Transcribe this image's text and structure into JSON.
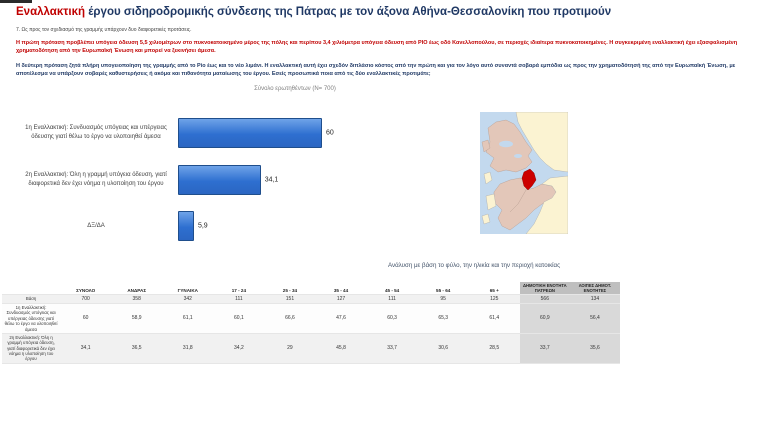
{
  "page": {
    "title_highlight": "Εναλλακτική",
    "title_rest": " έργου σιδηροδρομικής σύνδεσης της Πάτρας με τον άξονα Αθήνα-Θεσσαλονίκη που προτιμούν",
    "subtitle": "7. Ως προς τον σχεδιασμό της γραμμής υπάρχουν δυο διαφορετικές προτάσεις.",
    "paragraph_red": "Η πρώτη πρόταση προβλέπει υπόγεια όδευση 5,5 χιλιομέτρων στο πυκνοκατοικημένο μέρος της πόλης και περίπου 3,4 χιλιόμετρα υπόγεια όδευση από ΡΙΟ έως οδό Κανελλοπούλου, σε περιοχές ιδιαίτερα πυκνοκατοικημένες. Η συγκεκριμένη εναλλακτική έχει εξασφαλισμένη χρηματοδότηση από την Ευρωπαϊκή Ένωση και μπορεί να ξεκινήσει άμεσα.",
    "paragraph_blue": "Η δεύτερη πρόταση ζητά πλήρη υπογειοποίηση της γραμμής από το Ρίο έως και το νέο λιμάνι. Η εναλλακτική αυτή έχει σχεδόν διπλάσιο κόστος από την πρώτη και για τον λόγο αυτό συναντά σοβαρά εμπόδια ως προς την χρηματοδότησή της από την Ευρωπαϊκή Ένωση, με αποτέλεσμα να υπάρξουν σοβαρές καθυστερήσεις ή ακόμα και πιθανότητα ματαίωσης του έργου.  Εσείς προσωπικά ποια από τις δύο εναλλακτικές προτιμάτε;",
    "analysis_label": "Ανάλυση με βάση το φύλο, την ηλικία και την  περιοχή κατοικίας"
  },
  "chart_data": [
    {
      "type": "bar",
      "orientation": "horizontal",
      "title": "Σύνολο ερωτηθέντων (Ν= 700)",
      "categories": [
        "1η Εναλλακτική: Συνδυασμός υπόγειας και υπέργειας όδευσης γιατί θέλω το έργο να υλοποιηθεί άμεσα",
        "2η Εναλλακτική: Όλη η γραμμή υπόγεια όδευση, γιατί διαφορετικά δεν έχει νόημα η υλοποίηση του έργου",
        "ΔΞ/ΔΑ"
      ],
      "values": [
        60,
        34.1,
        5.9
      ],
      "value_labels": [
        "60",
        "34,1",
        "5,9"
      ],
      "xlim": [
        0,
        100
      ],
      "grid": false,
      "legend": false,
      "bar_color": "#2E6FD0",
      "bar_border_color": "#1F4E8C"
    },
    {
      "type": "table",
      "columns": [
        "ΣΥΝΟΛΟ",
        "ΑΝΔΡΑΣ",
        "ΓΥΝΑΙΚΑ",
        "17 - 24",
        "25 - 34",
        "35 - 44",
        "45 - 54",
        "55 - 64",
        "65 +",
        "ΔΗΜΟΤΙΚΗ ΕΝΟΤΗΤΑ ΠΑΤΡΕΩΝ",
        "ΛΟΙΠΕΣ ΔΗΜΟΤ. ΕΝΟΤΗΤΕΣ"
      ],
      "shaded_columns_from_index": 9,
      "rows": [
        {
          "label": "Βάση",
          "values": [
            "700",
            "358",
            "342",
            "111",
            "151",
            "127",
            "111",
            "95",
            "125",
            "566",
            "134"
          ]
        },
        {
          "label": "1η Εναλλακτική: Συνδυασμός υπόγειας και υπέργειας όδευσης γιατί θέλω το έργο να υλοποιηθεί άμεσα",
          "values": [
            "60",
            "58,9",
            "61,1",
            "60,1",
            "66,6",
            "47,6",
            "60,3",
            "65,3",
            "61,4",
            "60,9",
            "56,4"
          ]
        },
        {
          "label": "2η Εναλλακτική: Όλη η γραμμή υπόγεια όδευση, γιατί διαφορετικά δεν έχει νόημα η υλοποίηση του έργου",
          "values": [
            "34,1",
            "36,5",
            "31,8",
            "34,2",
            "29",
            "45,8",
            "33,7",
            "30,6",
            "28,5",
            "33,7",
            "35,6"
          ]
        }
      ]
    }
  ],
  "map": {
    "water": "#C3D9EE",
    "land": "#FBF3D2",
    "regions": "#E3C7B9",
    "highlight": "#CC0000"
  },
  "colors": {
    "title_accent": "#C00000",
    "title_main": "#1F3864",
    "analysis_text": "#44546A"
  }
}
